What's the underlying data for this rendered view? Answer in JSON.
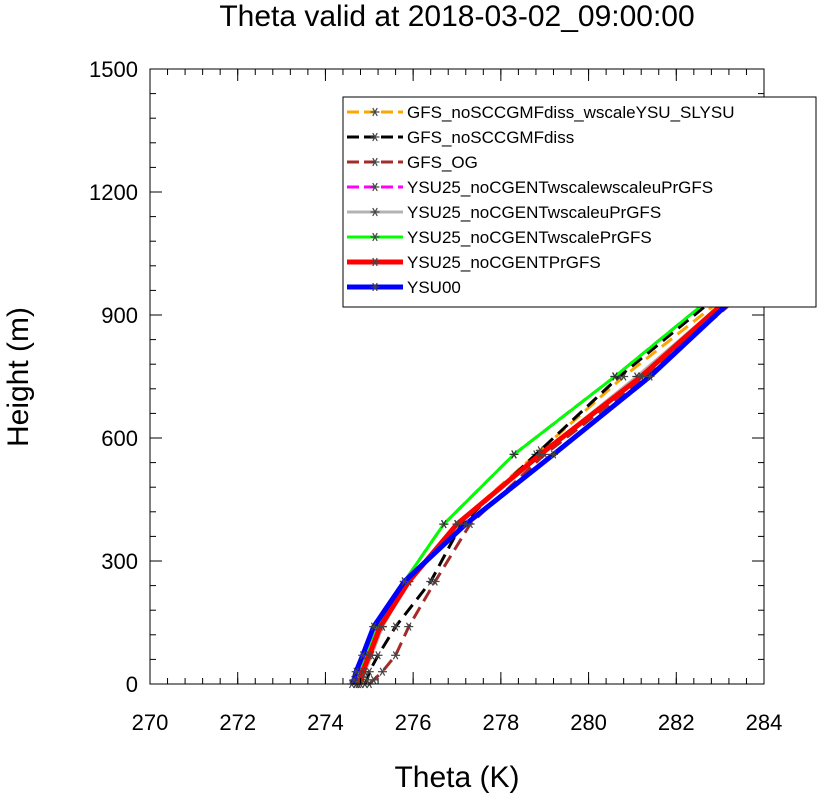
{
  "chart_data": {
    "type": "line",
    "title": "Theta valid at 2018-03-02_09:00:00",
    "xlabel": "Theta (K)",
    "ylabel": "Height (m)",
    "xlim": [
      270,
      284
    ],
    "ylim": [
      0,
      1500
    ],
    "xticks": [
      "270",
      "272",
      "274",
      "276",
      "278",
      "280",
      "282",
      "284"
    ],
    "yticks": [
      "0",
      "300",
      "600",
      "900",
      "1200",
      "1500"
    ],
    "legend_position": "top-right",
    "series": [
      {
        "name": "GFS_noSCCGMFdiss_wscaleYSU_SLYSU",
        "color": "#ffa500",
        "dash": "dash",
        "width": 3,
        "points": [
          [
            274.8,
            0
          ],
          [
            274.85,
            10
          ],
          [
            274.9,
            30
          ],
          [
            275.0,
            70
          ],
          [
            275.3,
            140
          ],
          [
            275.9,
            250
          ],
          [
            277.0,
            390
          ],
          [
            278.8,
            560
          ],
          [
            280.8,
            750
          ],
          [
            283.3,
            960
          ],
          [
            284.0,
            1040
          ]
        ]
      },
      {
        "name": "GFS_noSCCGMFdiss",
        "color": "#000000",
        "dash": "dash",
        "width": 3,
        "points": [
          [
            274.9,
            0
          ],
          [
            274.95,
            10
          ],
          [
            275.0,
            30
          ],
          [
            275.2,
            70
          ],
          [
            275.6,
            140
          ],
          [
            276.4,
            250
          ],
          [
            277.1,
            390
          ],
          [
            278.9,
            570
          ],
          [
            280.7,
            750
          ],
          [
            283.1,
            960
          ],
          [
            284.0,
            1050
          ]
        ]
      },
      {
        "name": "GFS_OG",
        "color": "#a52a2a",
        "dash": "dash",
        "width": 3,
        "points": [
          [
            275.0,
            0
          ],
          [
            275.1,
            10
          ],
          [
            275.3,
            30
          ],
          [
            275.6,
            70
          ],
          [
            275.9,
            140
          ],
          [
            276.5,
            250
          ],
          [
            277.3,
            390
          ],
          [
            279.0,
            560
          ],
          [
            281.3,
            750
          ],
          [
            283.6,
            960
          ],
          [
            284.0,
            1020
          ]
        ]
      },
      {
        "name": "YSU25_noCGENTwscalewscaleuPrGFS",
        "color": "#ff00ff",
        "dash": "dash",
        "width": 3,
        "points": [
          [
            274.7,
            0
          ],
          [
            274.75,
            10
          ],
          [
            274.8,
            30
          ],
          [
            274.95,
            70
          ],
          [
            275.2,
            140
          ],
          [
            275.8,
            250
          ],
          [
            276.7,
            390
          ],
          [
            278.3,
            560
          ],
          [
            280.6,
            750
          ],
          [
            283.0,
            960
          ],
          [
            284.0,
            1080
          ]
        ]
      },
      {
        "name": "YSU25_noCGENTwscaleuPrGFS",
        "color": "#b3b3b3",
        "dash": "solid",
        "width": 3,
        "points": [
          [
            274.75,
            0
          ],
          [
            274.8,
            10
          ],
          [
            274.9,
            30
          ],
          [
            275.05,
            70
          ],
          [
            275.3,
            140
          ],
          [
            275.9,
            250
          ],
          [
            277.0,
            390
          ],
          [
            278.9,
            560
          ],
          [
            281.1,
            750
          ],
          [
            283.4,
            960
          ],
          [
            284.0,
            1040
          ]
        ]
      },
      {
        "name": "YSU25_noCGENTwscalePrGFS",
        "color": "#00ff00",
        "dash": "solid",
        "width": 3,
        "points": [
          [
            274.7,
            0
          ],
          [
            274.75,
            10
          ],
          [
            274.8,
            30
          ],
          [
            274.95,
            70
          ],
          [
            275.2,
            140
          ],
          [
            275.8,
            250
          ],
          [
            276.7,
            390
          ],
          [
            278.3,
            560
          ],
          [
            280.6,
            750
          ],
          [
            283.0,
            960
          ],
          [
            284.0,
            1080
          ]
        ]
      },
      {
        "name": "YSU25_noCGENTPrGFS",
        "color": "#ff0000",
        "dash": "solid",
        "width": 5,
        "points": [
          [
            274.75,
            0
          ],
          [
            274.8,
            10
          ],
          [
            274.85,
            30
          ],
          [
            275.0,
            70
          ],
          [
            275.25,
            140
          ],
          [
            275.9,
            250
          ],
          [
            277.0,
            390
          ],
          [
            278.9,
            560
          ],
          [
            281.2,
            750
          ],
          [
            283.4,
            960
          ],
          [
            284.0,
            1030
          ]
        ]
      },
      {
        "name": "YSU00",
        "color": "#0000ff",
        "dash": "solid",
        "width": 5,
        "points": [
          [
            274.6,
            0
          ],
          [
            274.65,
            10
          ],
          [
            274.7,
            30
          ],
          [
            274.85,
            70
          ],
          [
            275.1,
            140
          ],
          [
            275.8,
            250
          ],
          [
            277.2,
            390
          ],
          [
            279.2,
            560
          ],
          [
            281.4,
            750
          ],
          [
            283.5,
            960
          ],
          [
            284.0,
            1020
          ]
        ]
      }
    ]
  }
}
